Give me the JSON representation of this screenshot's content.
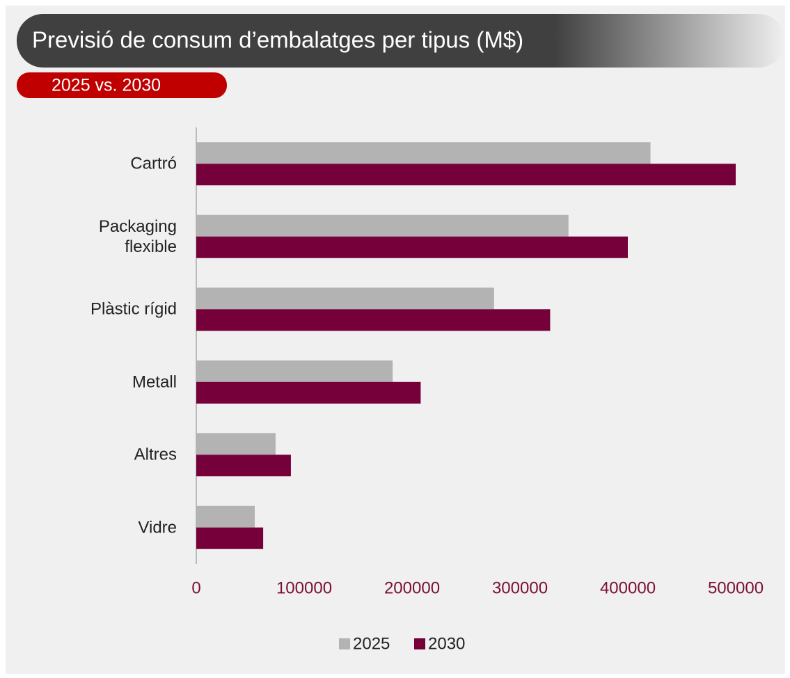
{
  "chart_data": {
    "type": "hbar",
    "title": "Previsió de consum d’embalatges per tipus (M$)",
    "subtitle": "2025 vs. 2030",
    "categories": [
      "Cartró",
      "Packaging flexible",
      "Plàstic rígid",
      "Metall",
      "Altres",
      "Vidre"
    ],
    "series": [
      {
        "name": "2025",
        "color": "#b3b3b3",
        "values": [
          421000,
          345000,
          276000,
          182000,
          73500,
          54200
        ]
      },
      {
        "name": "2030",
        "color": "#75003a",
        "values": [
          500000,
          400000,
          328000,
          208000,
          87700,
          62000
        ]
      }
    ],
    "xlim": [
      0,
      500000
    ],
    "xticks": [
      0,
      100000,
      200000,
      300000,
      400000,
      500000
    ],
    "grid": false,
    "legend": "bottom"
  }
}
